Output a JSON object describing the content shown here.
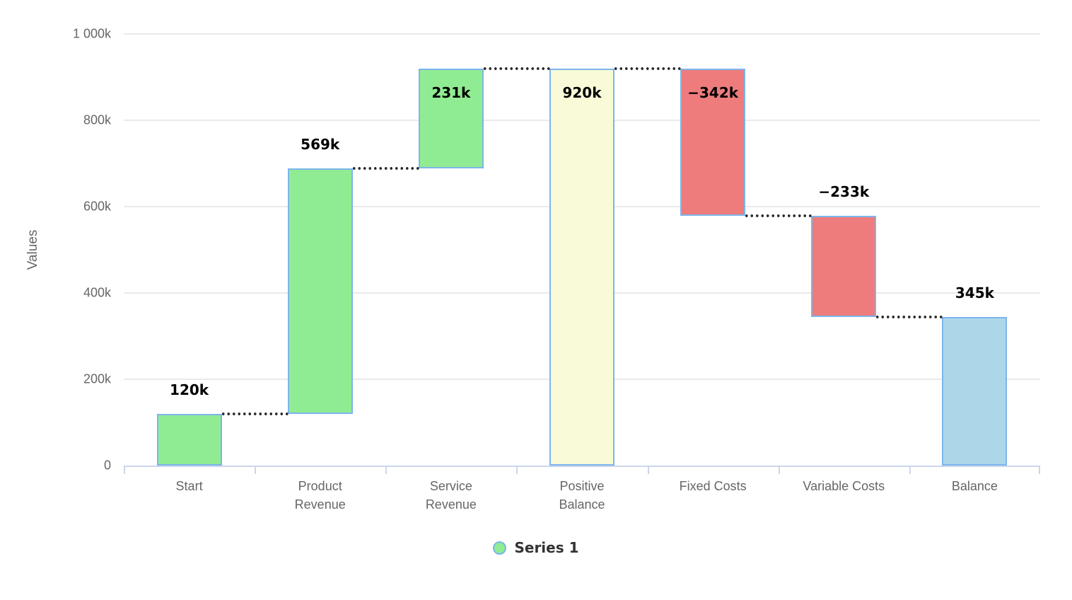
{
  "chart_data": {
    "type": "waterfall",
    "title": "",
    "xlabel": "",
    "ylabel": "Values",
    "grid": "horizontal",
    "legend_position": "bottom-center",
    "categories": [
      "Start",
      "Product Revenue",
      "Service Revenue",
      "Positive Balance",
      "Fixed Costs",
      "Variable Costs",
      "Balance"
    ],
    "y_axis": {
      "min": 0,
      "max": 1000,
      "tick_interval": 200,
      "ticks": [
        {
          "value": 0,
          "label": "0"
        },
        {
          "value": 200,
          "label": "200k"
        },
        {
          "value": 400,
          "label": "400k"
        },
        {
          "value": 600,
          "label": "600k"
        },
        {
          "value": 800,
          "label": "800k"
        },
        {
          "value": 1000,
          "label": "1 000k"
        }
      ]
    },
    "points": [
      {
        "category": "Start",
        "category_display": "Start",
        "value": 120,
        "start": 0,
        "end": 120,
        "kind": "rise",
        "label": "120k",
        "label_position": "above"
      },
      {
        "category": "Product Revenue",
        "category_display": "Product\nRevenue",
        "value": 569,
        "start": 120,
        "end": 689,
        "kind": "rise",
        "label": "569k",
        "label_position": "above"
      },
      {
        "category": "Service Revenue",
        "category_display": "Service\nRevenue",
        "value": 231,
        "start": 689,
        "end": 920,
        "kind": "rise",
        "label": "231k",
        "label_position": "inside"
      },
      {
        "category": "Positive Balance",
        "category_display": "Positive\nBalance",
        "value": 920,
        "start": 0,
        "end": 920,
        "kind": "total",
        "label": "920k",
        "label_position": "inside"
      },
      {
        "category": "Fixed Costs",
        "category_display": "Fixed Costs",
        "value": -342,
        "start": 920,
        "end": 578,
        "kind": "fall",
        "label": "−342k",
        "label_position": "inside"
      },
      {
        "category": "Variable Costs",
        "category_display": "Variable Costs",
        "value": -233,
        "start": 578,
        "end": 345,
        "kind": "fall",
        "label": "−233k",
        "label_position": "above"
      },
      {
        "category": "Balance",
        "category_display": "Balance",
        "value": 345,
        "start": 0,
        "end": 345,
        "kind": "final",
        "label": "345k",
        "label_position": "above"
      }
    ],
    "legend": {
      "label": "Series 1",
      "marker_color": "#90EC92",
      "marker_border": "#7CB5EC"
    },
    "colors": {
      "rise_fill": "#90EC92",
      "fall_fill": "#EE7C7C",
      "total_fill": "#F9FAD8",
      "final_fill": "#ABD7E9",
      "bar_border": "#7CB5EC",
      "connector": "#2B2B2B",
      "gridline": "#EAEAEA",
      "axis_line": "#CCD6EB",
      "axis_text": "#666666",
      "value_label": "#000000",
      "legend_text": "#333333"
    }
  }
}
